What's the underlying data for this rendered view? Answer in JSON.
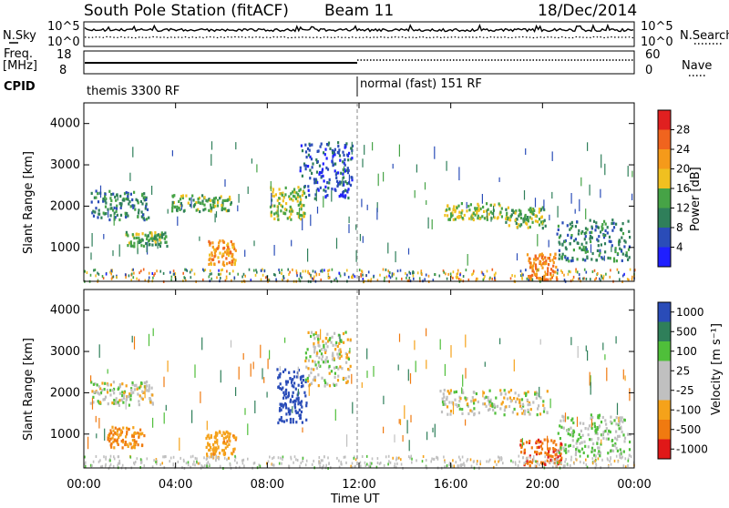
{
  "header": {
    "station": "South Pole Station (fitACF)",
    "beam": "Beam 11",
    "date": "18/Dec/2014"
  },
  "top_panel": {
    "left_label": "N.Sky",
    "right_label": "N.Search",
    "left_ticks": [
      "10^5",
      "10^0"
    ],
    "right_ticks": [
      "10^5",
      "10^0"
    ]
  },
  "freq_panel": {
    "left_label_1": "Freq.",
    "left_label_2": "[MHz]",
    "right_label": "Nave",
    "left_ticks": [
      "18",
      "8"
    ],
    "right_ticks": [
      "60",
      "0"
    ]
  },
  "cpid": {
    "label": "CPID",
    "segments": [
      {
        "text": "themis 3300 RF",
        "start_hour": 0
      },
      {
        "text": "normal (fast) 151 RF",
        "start_hour": 12
      }
    ]
  },
  "axes": {
    "xlabel": "Time UT",
    "xticks": [
      "00:00",
      "04:00",
      "08:00",
      "12:00",
      "16:00",
      "20:00",
      "00:00"
    ],
    "ylabel": "Slant Range [km]",
    "yticks": [
      "1000",
      "2000",
      "3000",
      "4000"
    ]
  },
  "power_scale": {
    "label": "Power [dB]",
    "ticks": [
      "4",
      "8",
      "12",
      "16",
      "20",
      "24",
      "28"
    ],
    "colors": [
      "#1f1fff",
      "#2a4cb8",
      "#2f7f5a",
      "#46a346",
      "#f0c020",
      "#f59a1a",
      "#f0641e",
      "#e02020"
    ]
  },
  "velocity_scale": {
    "label": "Velocity [m s⁻¹]",
    "ticks": [
      "1000",
      "500",
      "100",
      "25",
      "-25",
      "-100",
      "-500",
      "-1000"
    ],
    "colors": [
      "#2a4cb8",
      "#2f7f5a",
      "#4fbf3a",
      "#c0c0c0",
      "#c0c0c0",
      "#f5a21a",
      "#f07a10",
      "#e01818"
    ]
  },
  "chart_data": {
    "type": "heatmap",
    "x_range_hours": [
      0,
      24
    ],
    "y_range_km": [
      180,
      4500
    ],
    "power_blobs": [
      {
        "t": [
          0.3,
          2.8
        ],
        "r": [
          1700,
          2400
        ],
        "v": 10
      },
      {
        "t": [
          1.8,
          3.6
        ],
        "r": [
          1050,
          1400
        ],
        "v": 14
      },
      {
        "t": [
          3.8,
          6.4
        ],
        "r": [
          1900,
          2300
        ],
        "v": 14
      },
      {
        "t": [
          5.4,
          6.6
        ],
        "r": [
          600,
          1200
        ],
        "v": 22
      },
      {
        "t": [
          8.1,
          9.6
        ],
        "r": [
          1700,
          2500
        ],
        "v": 16
      },
      {
        "t": [
          9.4,
          11.7
        ],
        "r": [
          2200,
          3600
        ],
        "v": 6
      },
      {
        "t": [
          15.7,
          18.2
        ],
        "r": [
          1700,
          2100
        ],
        "v": 16
      },
      {
        "t": [
          18.3,
          20.1
        ],
        "r": [
          1500,
          2000
        ],
        "v": 14
      },
      {
        "t": [
          19.3,
          20.6
        ],
        "r": [
          250,
          900
        ],
        "v": 24
      },
      {
        "t": [
          20.6,
          23.8
        ],
        "r": [
          700,
          1700
        ],
        "v": 10
      }
    ],
    "velocity_blobs": [
      {
        "t": [
          0.2,
          3.0
        ],
        "r": [
          1700,
          2300
        ],
        "v": 0
      },
      {
        "t": [
          1.0,
          2.6
        ],
        "r": [
          700,
          1200
        ],
        "v": -300
      },
      {
        "t": [
          5.3,
          6.6
        ],
        "r": [
          400,
          1100
        ],
        "v": -200
      },
      {
        "t": [
          8.4,
          9.7
        ],
        "r": [
          1300,
          2600
        ],
        "v": 1200
      },
      {
        "t": [
          9.6,
          11.6
        ],
        "r": [
          2200,
          3500
        ],
        "v": 0
      },
      {
        "t": [
          15.5,
          20.2
        ],
        "r": [
          1500,
          2100
        ],
        "v": 0
      },
      {
        "t": [
          19.0,
          20.8
        ],
        "r": [
          250,
          900
        ],
        "v": -700
      },
      {
        "t": [
          20.6,
          23.8
        ],
        "r": [
          500,
          1500
        ],
        "v": 80
      }
    ]
  }
}
